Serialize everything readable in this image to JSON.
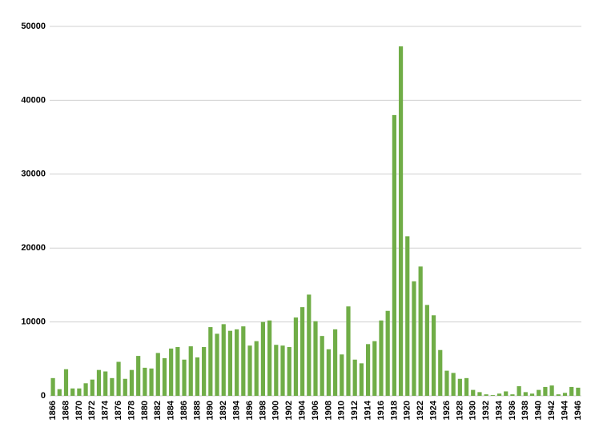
{
  "chart_data": {
    "type": "bar",
    "categories": [
      "1866",
      null,
      "1868",
      null,
      "1870",
      null,
      "1872",
      null,
      "1874",
      null,
      "1876",
      null,
      "1878",
      null,
      "1880",
      null,
      "1882",
      null,
      "1884",
      null,
      "1886",
      null,
      "1888",
      null,
      "1890",
      null,
      "1892",
      null,
      "1894",
      null,
      "1896",
      null,
      "1898",
      null,
      "1900",
      null,
      "1902",
      null,
      "1904",
      null,
      "1906",
      null,
      "1908",
      null,
      "1910",
      null,
      "1912",
      null,
      "1914",
      null,
      "1916",
      null,
      "1918",
      null,
      "1920",
      null,
      "1922",
      null,
      "1924",
      null,
      "1926",
      null,
      "1928",
      null,
      "1930",
      null,
      "1932",
      null,
      "1934",
      null,
      "1936",
      null,
      "1938",
      null,
      "1940",
      null,
      "1942",
      null,
      "1944",
      null,
      "1946"
    ],
    "values": [
      2400,
      900,
      3600,
      1000,
      1000,
      1700,
      2200,
      3500,
      3300,
      2400,
      4600,
      2300,
      3500,
      5400,
      3800,
      3700,
      5800,
      5100,
      6400,
      6600,
      4900,
      6700,
      5200,
      6600,
      9300,
      8400,
      9700,
      8800,
      9000,
      9400,
      6800,
      7400,
      10000,
      10200,
      6900,
      6800,
      6600,
      10600,
      12000,
      13700,
      10100,
      8100,
      6300,
      9000,
      5600,
      12100,
      4900,
      4400,
      7000,
      7400,
      10200,
      11500,
      38000,
      47300,
      21600,
      15500,
      17500,
      12300,
      10900,
      6200,
      3400,
      3100,
      2300,
      2400,
      800,
      500,
      200,
      100,
      300,
      600,
      200,
      1300,
      500,
      300,
      800,
      1200,
      1400,
      200,
      400,
      1200,
      1100
    ],
    "color": "#70ad47",
    "ylim": [
      0,
      50000
    ],
    "yticks": [
      0,
      10000,
      20000,
      30000,
      40000,
      50000
    ],
    "grid": true
  }
}
